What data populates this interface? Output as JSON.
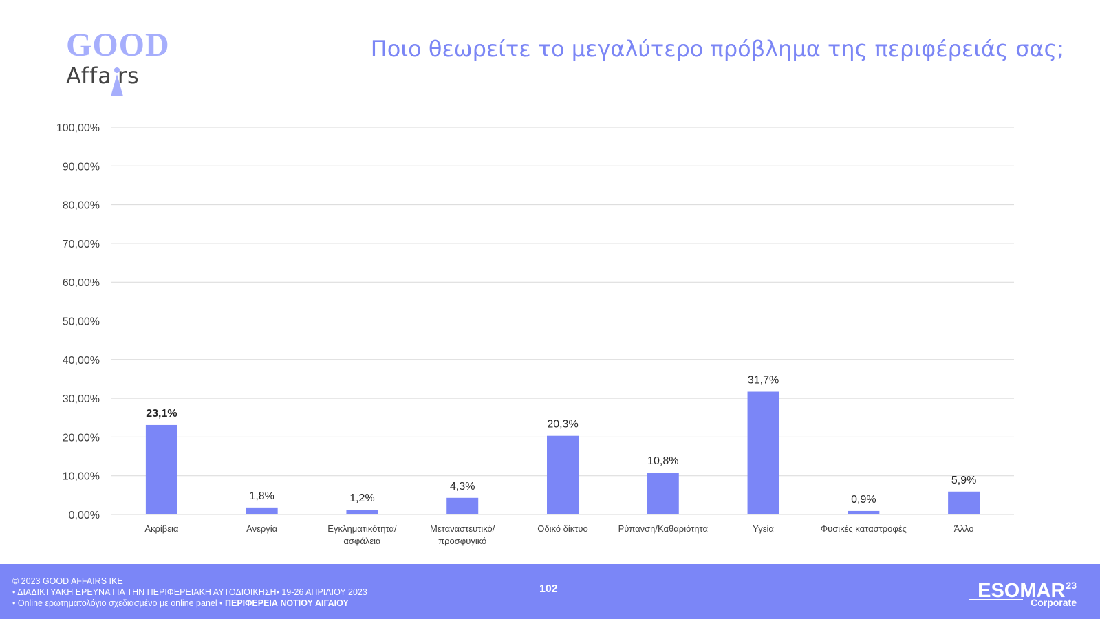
{
  "logo": {
    "line1": "GOOD",
    "line2": "Affa",
    "line2b": "rs"
  },
  "title": "Ποιο θεωρείτε το μεγαλύτερο πρόβλημα της περιφέρειάς σας;",
  "colors": {
    "accent": "#7b86f7",
    "bar": "#7b86f7",
    "title": "#7b86f5",
    "logo": "#a6aefc"
  },
  "chart_data": {
    "type": "bar",
    "categories": [
      [
        "Ακρίβεια"
      ],
      [
        "Ανεργία"
      ],
      [
        "Εγκληματικότητα/",
        "ασφάλεια"
      ],
      [
        "Μεταναστευτικό/",
        "προσφυγικό"
      ],
      [
        "Οδικό δίκτυο"
      ],
      [
        "Ρύπανση/Καθαριότητα"
      ],
      [
        "Υγεία"
      ],
      [
        "Φυσικές καταστροφές"
      ],
      [
        "Άλλο"
      ]
    ],
    "values": [
      23.1,
      1.8,
      1.2,
      4.3,
      20.3,
      10.8,
      31.7,
      0.9,
      5.9
    ],
    "data_labels": [
      "23,1%",
      "1,8%",
      "1,2%",
      "4,3%",
      "20,3%",
      "10,8%",
      "31,7%",
      "0,9%",
      "5,9%"
    ],
    "ylim": [
      0,
      100
    ],
    "yticks": [
      0,
      10,
      20,
      30,
      40,
      50,
      60,
      70,
      80,
      90,
      100
    ],
    "ytick_labels": [
      "0,00%",
      "10,00%",
      "20,00%",
      "30,00%",
      "40,00%",
      "50,00%",
      "60,00%",
      "70,00%",
      "80,00%",
      "90,00%",
      "100,00%"
    ],
    "grid": true,
    "legend": "none"
  },
  "footer": {
    "line1": "© 2023 GOOD AFFAIRS IKE",
    "line2": "• ΔΙΑΔΙΚΤΥΑΚΗ ΕΡΕΥΝΑ  ΓΙΑ ΤΗΝ ΠΕΡΙΦΕΡΕΙΑΚΗ ΑΥΤΟΔΙΟΙΚΗΣΗ• 19-26 ΑΠΡΙΛΙΟΥ 2023",
    "line3_a": "• Online ερωτηματολόγιο σχεδιασμένο με online panel  • ",
    "line3_b": "ΠΕΡΙΦΕΡΕΙΑ ΝΟΤΙΟΥ ΑΙΓΑΙΟΥ",
    "page_number": "102",
    "esomar": "ESOMAR",
    "esomar_sup": "23",
    "esomar_sub": "Corporate"
  }
}
